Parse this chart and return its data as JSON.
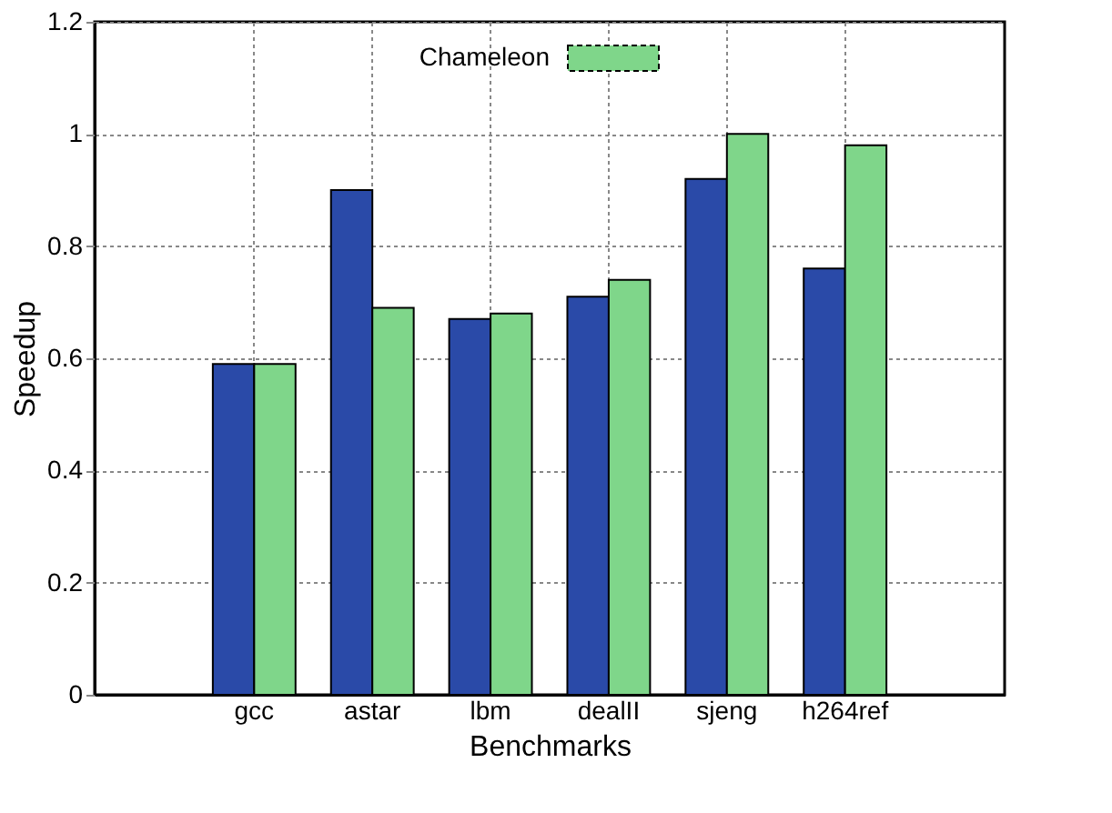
{
  "chart_data": {
    "type": "bar",
    "xlabel": "Benchmarks",
    "ylabel": "Speedup",
    "categories": [
      "gcc",
      "astar",
      "lbm",
      "dealII",
      "sjeng",
      "h264ref"
    ],
    "series": [
      {
        "color": "#2a4aa8",
        "values": [
          0.59,
          0.9,
          0.67,
          0.71,
          0.92,
          0.76
        ]
      },
      {
        "name": "Chameleon",
        "color": "#7fd68a",
        "values": [
          0.59,
          0.69,
          0.68,
          0.74,
          1.0,
          0.98
        ]
      }
    ],
    "ylim": [
      0,
      1.2
    ],
    "yticks": [
      0,
      0.2,
      0.4,
      0.6,
      0.8,
      1,
      1.2
    ],
    "grid": true,
    "legend": "top"
  }
}
